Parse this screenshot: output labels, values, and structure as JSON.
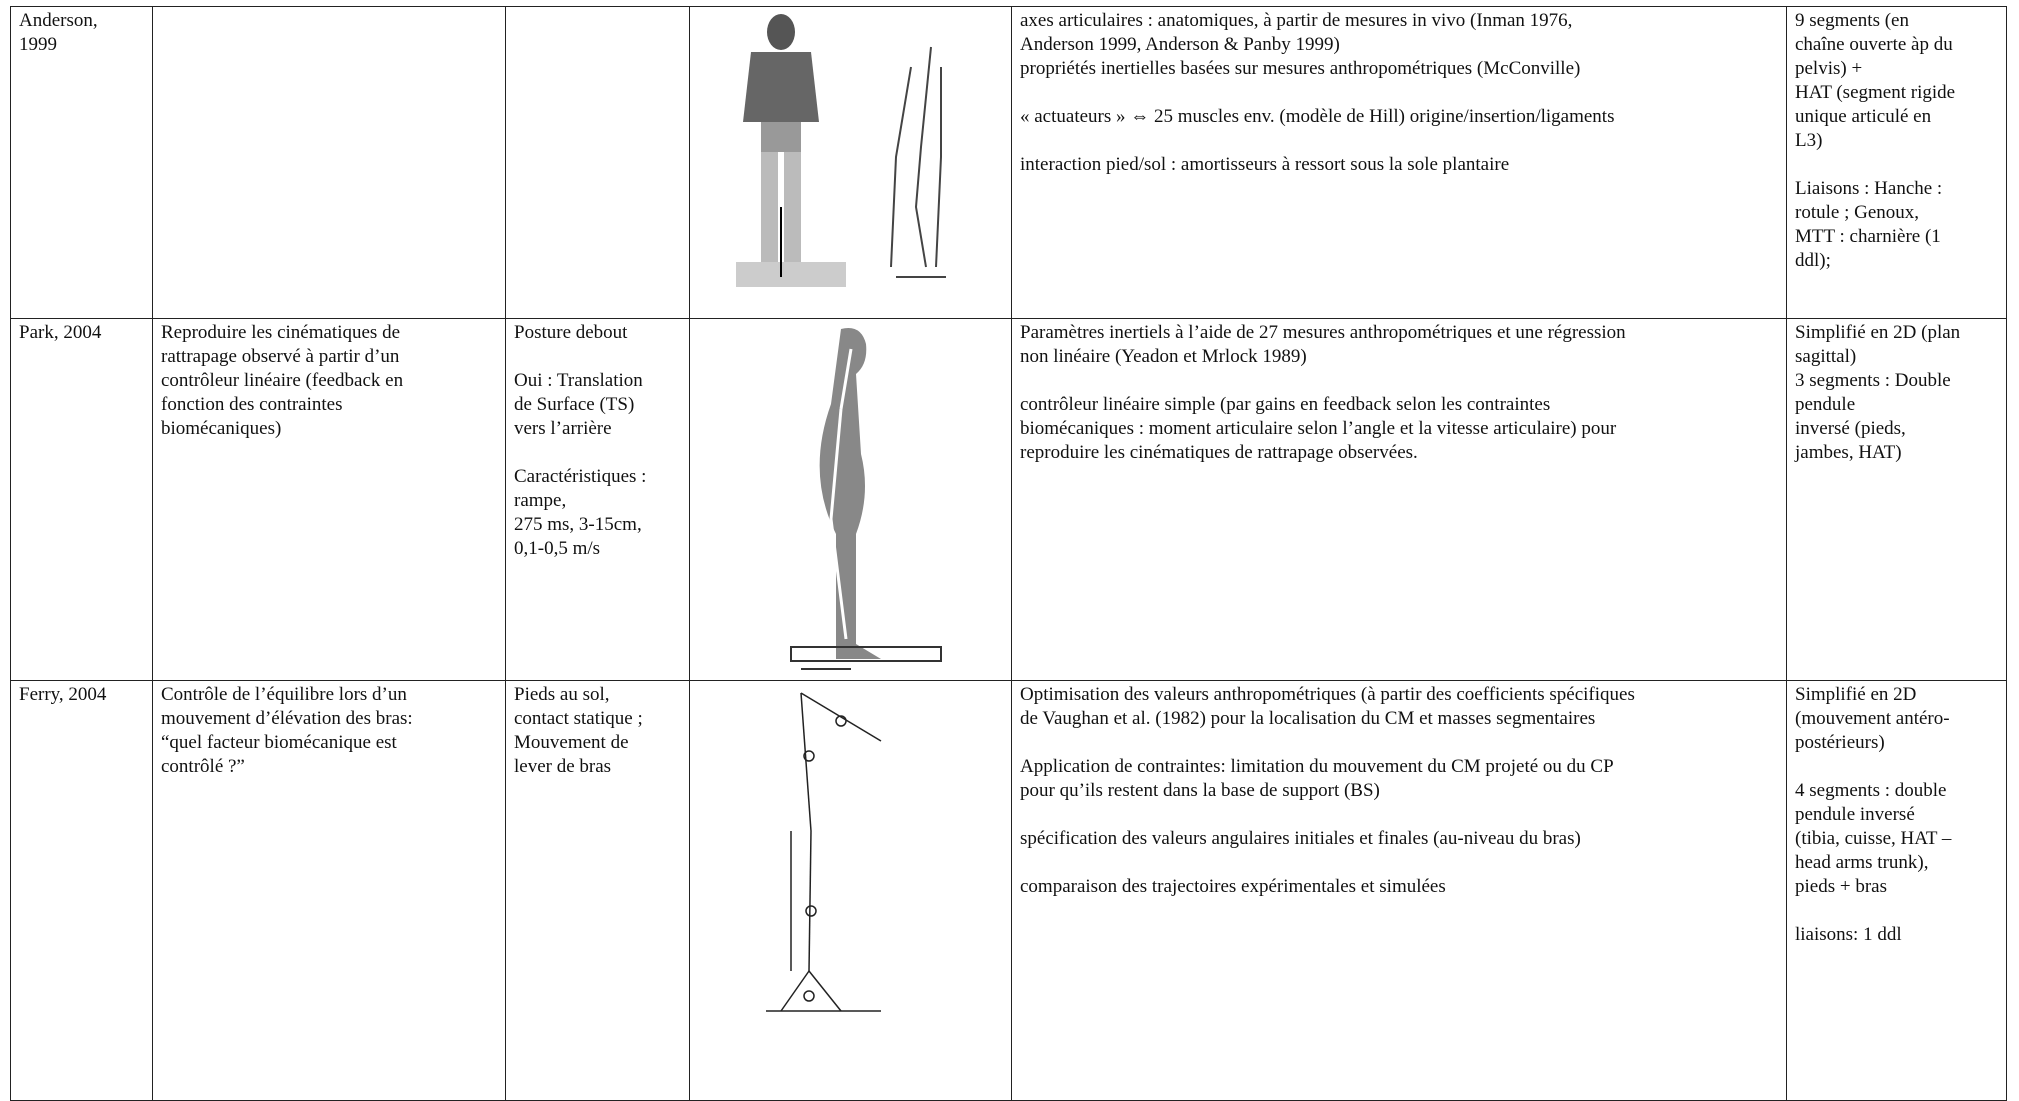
{
  "table": {
    "rows": [
      {
        "author": [
          "Anderson,",
          "1999"
        ],
        "method": [
          [
            "axes articulaires : anatomiques, à partir de mesures in vivo (Inman 1976,",
            "Anderson 1999, Anderson & Panby 1999)",
            "propriétés inertielles basées sur mesures anthropométriques (McConville)"
          ],
          [
            "« actuateurs » ⇔ 25 muscles env. (modèle de Hill) origine/insertion/ligaments"
          ],
          [
            "interaction pied/sol : amortisseurs à ressort sous la sole plantaire"
          ]
        ],
        "model": [
          [
            "9 segments (en",
            "chaîne ouverte àp  du",
            "pelvis) +",
            "HAT (segment rigide",
            "unique articulé en",
            "L3)"
          ],
          [
            "Liaisons : Hanche :",
            "rotule ; Genoux,",
            "MTT : charnière (1",
            "ddl);"
          ]
        ]
      },
      {
        "author": [
          "Park, 2004"
        ],
        "objective": [
          [
            "Reproduire les cinématiques de",
            "rattrapage observé à partir d’un",
            "contrôleur linéaire (feedback en",
            "fonction des contraintes",
            "biomécaniques)"
          ]
        ],
        "conditions": [
          [
            "Posture debout"
          ],
          [
            "Oui :  Translation",
            "de Surface (TS)",
            "vers l’arrière"
          ],
          [
            "Caractéristiques :",
            "rampe,",
            "275 ms, 3-15cm,",
            "0,1-0,5 m/s"
          ]
        ],
        "method": [
          [
            "Paramètres inertiels à l’aide de 27 mesures anthropométriques et une régression",
            "non linéaire (Yeadon et Mrlock 1989)"
          ],
          [
            "contrôleur linéaire simple (par gains en feedback selon les contraintes",
            "biomécaniques : moment articulaire selon l’angle et la vitesse  articulaire) pour",
            "reproduire les cinématiques de rattrapage observées."
          ]
        ],
        "model": [
          [
            "Simplifié en 2D (plan",
            "sagittal)",
            "3 segments : Double",
            "pendule",
            "inversé (pieds,",
            "jambes, HAT)"
          ]
        ]
      },
      {
        "author": [
          "Ferry, 2004"
        ],
        "objective": [
          [
            "Contrôle de l’équilibre lors d’un",
            "mouvement d’élévation des bras:",
            "“quel facteur biomécanique est",
            "contrôlé ?”"
          ]
        ],
        "conditions": [
          [
            "Pieds au sol,",
            "contact statique ;",
            "Mouvement de",
            "lever de bras"
          ]
        ],
        "method": [
          [
            "Optimisation des valeurs anthropométriques (à partir des coefficients spécifiques",
            "de Vaughan et al. (1982) pour la localisation du CM et masses segmentaires"
          ],
          [
            "Application de contraintes: limitation du mouvement du CM projeté ou du CP",
            "pour qu’ils restent dans la base de support (BS)"
          ],
          [
            "spécification des valeurs angulaires initiales et finales  (au-niveau du bras)"
          ],
          [
            "comparaison des trajectoires expérimentales et simulées"
          ]
        ],
        "model": [
          [
            "Simplifié en 2D",
            "(mouvement antéro-",
            "postérieurs)"
          ],
          [
            "4 segments : double",
            "pendule inversé",
            "(tibia, cuisse, HAT –",
            "head arms trunk),",
            "pieds + bras"
          ],
          [
            "liaisons: 1 ddl"
          ]
        ]
      }
    ]
  }
}
